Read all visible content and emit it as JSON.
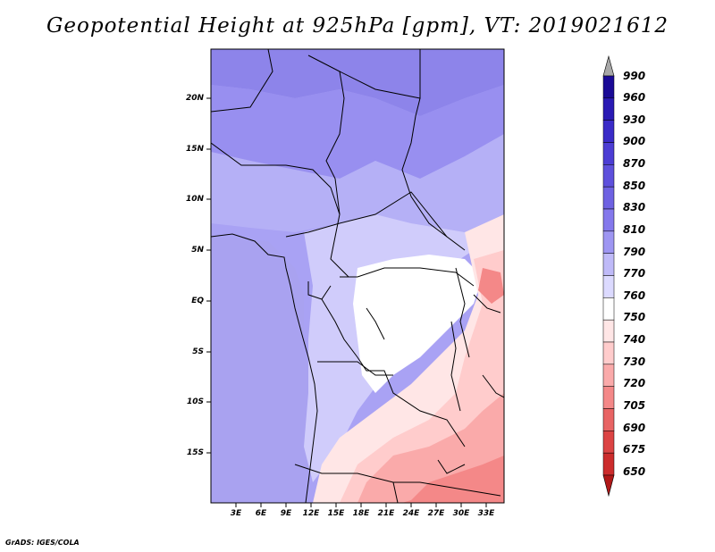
{
  "title": "Geopotential Height at 925hPa [gpm], VT: 2019021612",
  "credit": "GrADS: IGES/COLA",
  "map": {
    "variable": "Geopotential Height",
    "level": "925hPa",
    "units": "gpm",
    "valid_time": "2019021612",
    "lat_labels": [
      "20N",
      "15N",
      "10N",
      "5N",
      "EQ",
      "5S",
      "10S",
      "15S"
    ],
    "lon_labels": [
      "3E",
      "6E",
      "9E",
      "12E",
      "15E",
      "18E",
      "21E",
      "24E",
      "27E",
      "30E",
      "33E"
    ]
  },
  "colorbar": {
    "levels": [
      "990",
      "960",
      "930",
      "900",
      "870",
      "850",
      "830",
      "810",
      "790",
      "770",
      "760",
      "750",
      "740",
      "730",
      "720",
      "705",
      "690",
      "675",
      "650"
    ],
    "colors": [
      "#a8a8a8",
      "#1a0a96",
      "#2a1ab4",
      "#3a2bc8",
      "#4c3dd4",
      "#5e50dc",
      "#6e62e2",
      "#8478ec",
      "#9e96f2",
      "#bfbaf8",
      "#dcdaff",
      "#ffffff",
      "#ffe6e6",
      "#ffcccc",
      "#faaaaa",
      "#f48888",
      "#e86464",
      "#dc4444",
      "#cc2c2c",
      "#b01818"
    ]
  }
}
